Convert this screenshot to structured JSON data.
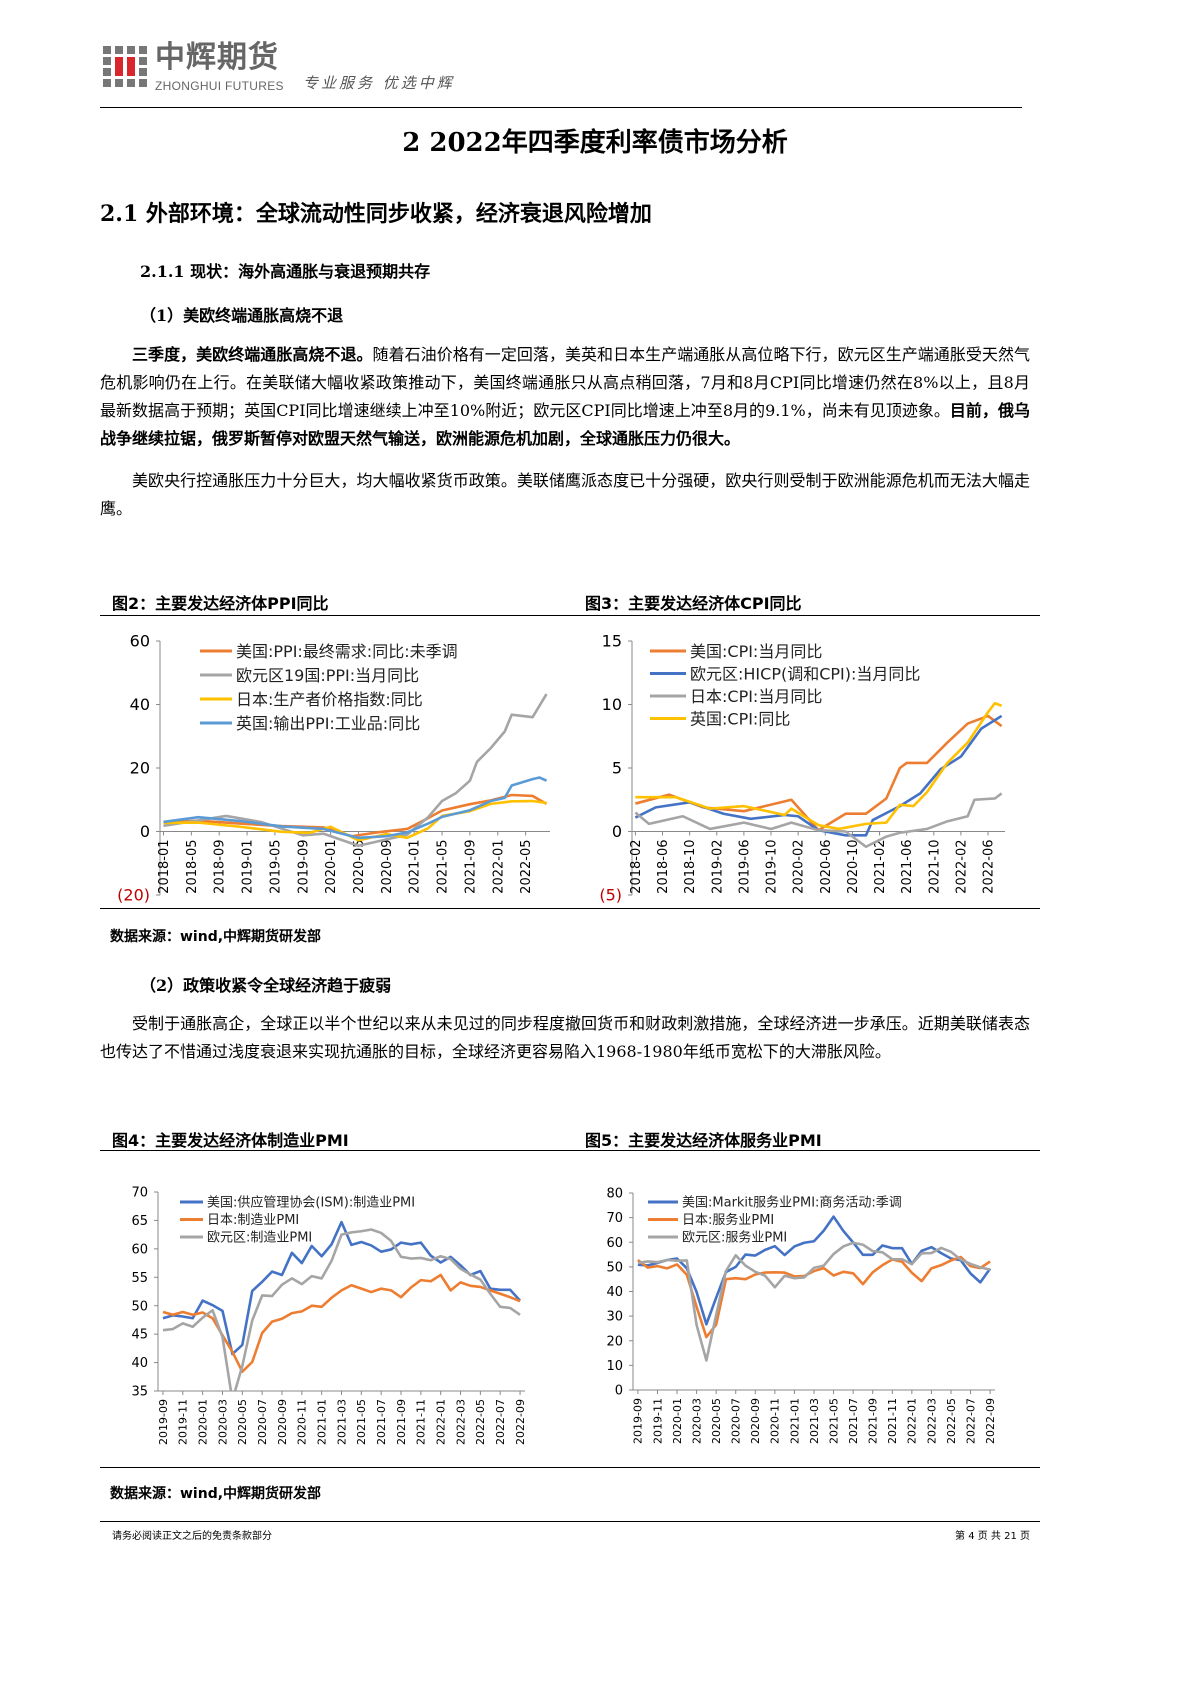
{
  "header": {
    "logo_cn": "中辉期货",
    "logo_en": "ZHONGHUI FUTURES",
    "slogan": "专业服务 优选中辉"
  },
  "title": "2 2022年四季度利率债市场分析",
  "section": "2.1 外部环境：全球流动性同步收紧，经济衰退风险增加",
  "subsection": "2.1.1 现状：海外高通胀与衰退预期共存",
  "point1": "（1）美欧终端通胀高烧不退",
  "para1": {
    "bold1": "三季度，美欧终端通胀高烧不退。",
    "text1": "随着石油价格有一定回落，美英和日本生产端通胀从高位略下行，欧元区生产端通胀受天然气危机影响仍在上行。在美联储大幅收紧政策推动下，美国终端通胀只从高点稍回落，7月和8月CPI同比增速仍然在8%以上，且8月最新数据高于预期；英国CPI同比增速继续上冲至10%附近；欧元区CPI同比增速上冲至8月的9.1%，尚未有见顶迹象。",
    "bold2": "目前，俄乌战争继续拉锯，俄罗斯暂停对欧盟天然气输送，欧洲能源危机加剧，全球通胀压力仍很大。"
  },
  "para2": "美欧央行控通胀压力十分巨大，均大幅收紧货币政策。美联储鹰派态度已十分强硬，欧央行则受制于欧洲能源危机而无法大幅走鹰。",
  "point2": "（2）政策收紧令全球经济趋于疲弱",
  "para3": "受制于通胀高企，全球正以半个世纪以来从未见过的同步程度撤回货币和财政刺激措施，全球经济进一步承压。近期美联储表态也传达了不惜通过浅度衰退来实现抗通胀的目标，全球经济更容易陷入1968-1980年纸币宽松下的大滞胀风险。",
  "source1": "数据来源：wind,中辉期货研发部",
  "source2": "数据来源：wind,中辉期货研发部",
  "footer": {
    "disclaimer": "请务必阅读正文之后的免责条款部分",
    "page": "第 4 页 共 21 页"
  },
  "chart_data": [
    {
      "id": "fig2",
      "figure_title": "图2：主要发达经济体PPI同比",
      "type": "line",
      "ylim": [
        -20,
        60
      ],
      "yticks": [
        60,
        40,
        20,
        0,
        -20
      ],
      "ytick_labels": [
        "60",
        "40",
        "20",
        "0",
        "(20)"
      ],
      "negative_label_color": "#C00000",
      "x_range": [
        "2018-01",
        "2022-08"
      ],
      "xticks": [
        "2018-01",
        "2018-05",
        "2018-09",
        "2019-01",
        "2019-05",
        "2019-09",
        "2020-01",
        "2020-05",
        "2020-09",
        "2021-01",
        "2021-05",
        "2021-09",
        "2022-01",
        "2022-05"
      ],
      "legend": "top-left",
      "grid": false,
      "series": [
        {
          "name": "美国:PPI:最终需求:同比:未季调",
          "color": "#ED7D31",
          "points": [
            [
              "2018-01",
              2.8
            ],
            [
              "2018-06",
              3.4
            ],
            [
              "2018-12",
              2.5
            ],
            [
              "2019-06",
              1.7
            ],
            [
              "2019-12",
              1.3
            ],
            [
              "2020-04",
              -1.5
            ],
            [
              "2020-08",
              -0.2
            ],
            [
              "2020-12",
              0.8
            ],
            [
              "2021-03",
              4.2
            ],
            [
              "2021-05",
              6.6
            ],
            [
              "2021-09",
              8.6
            ],
            [
              "2021-12",
              9.8
            ],
            [
              "2022-03",
              11.5
            ],
            [
              "2022-06",
              11.2
            ],
            [
              "2022-08",
              8.7
            ]
          ]
        },
        {
          "name": "欧元区19国:PPI:当月同比",
          "color": "#A5A5A5",
          "points": [
            [
              "2018-01",
              1.8
            ],
            [
              "2018-06",
              3.5
            ],
            [
              "2018-10",
              4.9
            ],
            [
              "2019-03",
              3.0
            ],
            [
              "2019-09",
              -1.2
            ],
            [
              "2019-12",
              -0.7
            ],
            [
              "2020-05",
              -4.5
            ],
            [
              "2020-09",
              -2.5
            ],
            [
              "2020-12",
              -1.0
            ],
            [
              "2021-03",
              4.5
            ],
            [
              "2021-05",
              9.6
            ],
            [
              "2021-07",
              12.1
            ],
            [
              "2021-09",
              16.0
            ],
            [
              "2021-10",
              21.9
            ],
            [
              "2021-12",
              26.3
            ],
            [
              "2022-02",
              31.5
            ],
            [
              "2022-03",
              36.8
            ],
            [
              "2022-06",
              36.0
            ],
            [
              "2022-08",
              43.3
            ]
          ]
        },
        {
          "name": "日本:生产者价格指数:同比",
          "color": "#FFC000",
          "points": [
            [
              "2018-01",
              2.7
            ],
            [
              "2018-06",
              2.8
            ],
            [
              "2018-12",
              1.5
            ],
            [
              "2019-06",
              -0.1
            ],
            [
              "2019-10",
              -0.4
            ],
            [
              "2020-01",
              1.5
            ],
            [
              "2020-05",
              -2.8
            ],
            [
              "2020-09",
              -0.8
            ],
            [
              "2020-12",
              -2.0
            ],
            [
              "2021-03",
              1.0
            ],
            [
              "2021-05",
              4.9
            ],
            [
              "2021-09",
              6.4
            ],
            [
              "2021-12",
              8.7
            ],
            [
              "2022-03",
              9.5
            ],
            [
              "2022-06",
              9.6
            ],
            [
              "2022-08",
              9.0
            ]
          ]
        },
        {
          "name": "英国:输出PPI:工业品:同比",
          "color": "#5B9BD5",
          "points": [
            [
              "2018-01",
              3.0
            ],
            [
              "2018-06",
              4.5
            ],
            [
              "2018-12",
              3.3
            ],
            [
              "2019-06",
              1.6
            ],
            [
              "2019-12",
              0.8
            ],
            [
              "2020-05",
              -2.0
            ],
            [
              "2020-09",
              -1.5
            ],
            [
              "2020-12",
              -0.3
            ],
            [
              "2021-03",
              2.5
            ],
            [
              "2021-05",
              4.6
            ],
            [
              "2021-09",
              6.7
            ],
            [
              "2021-12",
              9.6
            ],
            [
              "2022-02",
              10.6
            ],
            [
              "2022-03",
              14.5
            ],
            [
              "2022-06",
              16.5
            ],
            [
              "2022-07",
              17.0
            ],
            [
              "2022-08",
              16.0
            ]
          ]
        }
      ]
    },
    {
      "id": "fig3",
      "figure_title": "图3：主要发达经济体CPI同比",
      "type": "line",
      "ylim": [
        -5,
        15
      ],
      "yticks": [
        15,
        10,
        5,
        0,
        -5
      ],
      "ytick_labels": [
        "15",
        "10",
        "5",
        "0",
        "(5)"
      ],
      "negative_label_color": "#C00000",
      "x_range": [
        "2018-02",
        "2022-08"
      ],
      "xticks": [
        "2018-02",
        "2018-06",
        "2018-10",
        "2019-02",
        "2019-06",
        "2019-10",
        "2020-02",
        "2020-06",
        "2020-10",
        "2021-02",
        "2021-06",
        "2021-10",
        "2022-02",
        "2022-06"
      ],
      "legend": "top-left",
      "grid": false,
      "series": [
        {
          "name": "美国:CPI:当月同比",
          "color": "#ED7D31",
          "points": [
            [
              "2018-02",
              2.2
            ],
            [
              "2018-07",
              2.9
            ],
            [
              "2018-12",
              1.9
            ],
            [
              "2019-06",
              1.6
            ],
            [
              "2020-01",
              2.5
            ],
            [
              "2020-05",
              0.1
            ],
            [
              "2020-09",
              1.4
            ],
            [
              "2020-12",
              1.4
            ],
            [
              "2021-03",
              2.6
            ],
            [
              "2021-05",
              5.0
            ],
            [
              "2021-06",
              5.4
            ],
            [
              "2021-09",
              5.4
            ],
            [
              "2021-12",
              7.0
            ],
            [
              "2022-03",
              8.5
            ],
            [
              "2022-06",
              9.1
            ],
            [
              "2022-08",
              8.3
            ]
          ]
        },
        {
          "name": "欧元区:HICP(调和CPI):当月同比",
          "color": "#4472C4",
          "points": [
            [
              "2018-02",
              1.1
            ],
            [
              "2018-05",
              1.9
            ],
            [
              "2018-10",
              2.3
            ],
            [
              "2019-03",
              1.4
            ],
            [
              "2019-07",
              1.0
            ],
            [
              "2019-12",
              1.3
            ],
            [
              "2020-02",
              1.2
            ],
            [
              "2020-05",
              0.1
            ],
            [
              "2020-09",
              -0.3
            ],
            [
              "2020-12",
              -0.3
            ],
            [
              "2021-01",
              0.9
            ],
            [
              "2021-05",
              2.0
            ],
            [
              "2021-08",
              3.0
            ],
            [
              "2021-11",
              4.9
            ],
            [
              "2022-02",
              5.9
            ],
            [
              "2022-05",
              8.1
            ],
            [
              "2022-08",
              9.1
            ]
          ]
        },
        {
          "name": "日本:CPI:当月同比",
          "color": "#A5A5A5",
          "points": [
            [
              "2018-02",
              1.5
            ],
            [
              "2018-04",
              0.6
            ],
            [
              "2018-09",
              1.2
            ],
            [
              "2019-01",
              0.2
            ],
            [
              "2019-06",
              0.7
            ],
            [
              "2019-10",
              0.2
            ],
            [
              "2020-01",
              0.7
            ],
            [
              "2020-05",
              0.1
            ],
            [
              "2020-09",
              0.0
            ],
            [
              "2020-12",
              -1.2
            ],
            [
              "2021-03",
              -0.4
            ],
            [
              "2021-05",
              -0.1
            ],
            [
              "2021-09",
              0.2
            ],
            [
              "2021-12",
              0.8
            ],
            [
              "2022-03",
              1.2
            ],
            [
              "2022-04",
              2.5
            ],
            [
              "2022-07",
              2.6
            ],
            [
              "2022-08",
              3.0
            ]
          ]
        },
        {
          "name": "英国:CPI:同比",
          "color": "#FFC000",
          "points": [
            [
              "2018-02",
              2.7
            ],
            [
              "2018-08",
              2.7
            ],
            [
              "2019-01",
              1.8
            ],
            [
              "2019-06",
              2.0
            ],
            [
              "2019-12",
              1.3
            ],
            [
              "2020-01",
              1.8
            ],
            [
              "2020-05",
              0.5
            ],
            [
              "2020-08",
              0.2
            ],
            [
              "2020-12",
              0.6
            ],
            [
              "2021-03",
              0.7
            ],
            [
              "2021-05",
              2.1
            ],
            [
              "2021-07",
              2.0
            ],
            [
              "2021-09",
              3.1
            ],
            [
              "2021-12",
              5.4
            ],
            [
              "2022-03",
              7.0
            ],
            [
              "2022-06",
              9.4
            ],
            [
              "2022-07",
              10.1
            ],
            [
              "2022-08",
              9.9
            ]
          ]
        }
      ]
    },
    {
      "id": "fig4",
      "figure_title": "图4：主要发达经济体制造业PMI",
      "type": "line",
      "ylim": [
        35,
        70
      ],
      "yticks": [
        70,
        65,
        60,
        55,
        50,
        45,
        40,
        35
      ],
      "ytick_labels": [
        "70",
        "65",
        "60",
        "55",
        "50",
        "45",
        "40",
        "35"
      ],
      "x_range": [
        "2019-09",
        "2022-09"
      ],
      "xticks": [
        "2019-09",
        "2019-11",
        "2020-01",
        "2020-03",
        "2020-05",
        "2020-07",
        "2020-09",
        "2020-11",
        "2021-01",
        "2021-03",
        "2021-05",
        "2021-07",
        "2021-09",
        "2021-11",
        "2022-01",
        "2022-03",
        "2022-05",
        "2022-07",
        "2022-09"
      ],
      "legend": "top-left",
      "grid": false,
      "series": [
        {
          "name": "美国:供应管理协会(ISM):制造业PMI",
          "color": "#4472C4",
          "values": [
            47.8,
            48.3,
            48.1,
            47.8,
            50.9,
            50.1,
            49.1,
            41.5,
            43.1,
            52.6,
            54.2,
            56.0,
            55.4,
            59.3,
            57.5,
            60.5,
            58.7,
            60.8,
            64.7,
            60.7,
            61.2,
            60.6,
            59.5,
            59.9,
            61.1,
            60.8,
            61.1,
            58.8,
            57.6,
            58.6,
            57.1,
            55.4,
            56.1,
            53.0,
            52.8,
            52.8,
            50.9
          ]
        },
        {
          "name": "日本:制造业PMI",
          "color": "#ED7D31",
          "values": [
            48.9,
            48.4,
            48.9,
            48.4,
            48.8,
            47.8,
            44.8,
            41.9,
            38.4,
            40.1,
            45.2,
            47.2,
            47.7,
            48.7,
            49.0,
            50.0,
            49.8,
            51.4,
            52.7,
            53.6,
            53.0,
            52.4,
            53.0,
            52.7,
            51.5,
            53.2,
            54.5,
            54.3,
            55.4,
            52.7,
            54.1,
            53.5,
            53.3,
            52.7,
            52.1,
            51.5,
            50.8
          ]
        },
        {
          "name": "欧元区:制造业PMI",
          "color": "#A5A5A5",
          "values": [
            45.7,
            45.9,
            46.9,
            46.3,
            47.9,
            49.2,
            44.5,
            33.4,
            39.4,
            47.4,
            51.8,
            51.7,
            53.7,
            54.8,
            53.8,
            55.2,
            54.8,
            57.9,
            62.5,
            62.9,
            63.1,
            63.4,
            62.8,
            61.4,
            58.6,
            58.3,
            58.4,
            58.0,
            58.7,
            58.2,
            56.5,
            55.5,
            54.6,
            52.1,
            49.8,
            49.6,
            48.4
          ]
        }
      ]
    },
    {
      "id": "fig5",
      "figure_title": "图5：主要发达经济体服务业PMI",
      "type": "line",
      "ylim": [
        0,
        80
      ],
      "yticks": [
        80,
        70,
        60,
        50,
        40,
        30,
        20,
        10,
        0
      ],
      "ytick_labels": [
        "80",
        "70",
        "60",
        "50",
        "40",
        "30",
        "20",
        "10",
        "0"
      ],
      "x_range": [
        "2019-09",
        "2022-09"
      ],
      "xticks": [
        "2019-09",
        "2019-11",
        "2020-01",
        "2020-03",
        "2020-05",
        "2020-07",
        "2020-09",
        "2020-11",
        "2021-01",
        "2021-03",
        "2021-05",
        "2021-07",
        "2021-09",
        "2021-11",
        "2022-01",
        "2022-03",
        "2022-05",
        "2022-07",
        "2022-09"
      ],
      "legend": "top-left",
      "grid": false,
      "series": [
        {
          "name": "美国:Markit服务业PMI:商务活动:季调",
          "color": "#4472C4",
          "values": [
            50.9,
            50.6,
            51.6,
            52.8,
            53.4,
            49.4,
            39.8,
            26.7,
            37.5,
            47.9,
            50.0,
            55.0,
            54.6,
            56.9,
            58.4,
            54.8,
            58.3,
            59.8,
            60.4,
            64.7,
            70.4,
            64.6,
            59.9,
            54.9,
            54.9,
            58.7,
            57.6,
            57.6,
            51.2,
            56.5,
            58.0,
            55.6,
            53.4,
            52.7,
            47.3,
            43.7,
            49.3
          ]
        },
        {
          "name": "日本:服务业PMI",
          "color": "#ED7D31",
          "values": [
            52.8,
            49.7,
            50.3,
            49.4,
            51.0,
            46.8,
            33.8,
            21.5,
            26.5,
            45.0,
            45.4,
            45.0,
            46.9,
            47.7,
            47.8,
            47.7,
            46.1,
            46.3,
            48.3,
            49.5,
            46.5,
            48.0,
            47.4,
            43.0,
            47.8,
            50.7,
            53.0,
            52.1,
            47.6,
            44.2,
            49.4,
            50.7,
            52.6,
            54.0,
            50.3,
            49.5,
            52.2
          ]
        },
        {
          "name": "欧元区:服务业PMI",
          "color": "#A5A5A5",
          "values": [
            51.6,
            52.2,
            51.9,
            52.8,
            52.5,
            52.6,
            26.4,
            12.0,
            30.5,
            48.3,
            54.7,
            50.5,
            48.0,
            46.4,
            41.7,
            46.4,
            45.4,
            45.7,
            49.6,
            50.5,
            55.2,
            58.3,
            59.8,
            59.0,
            56.4,
            55.9,
            53.1,
            53.1,
            51.1,
            55.5,
            55.6,
            57.7,
            56.1,
            53.0,
            51.2,
            49.8,
            48.9
          ]
        }
      ]
    }
  ]
}
